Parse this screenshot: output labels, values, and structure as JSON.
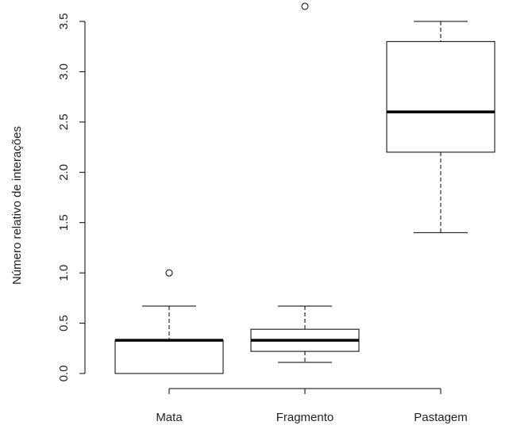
{
  "chart_data": {
    "type": "boxplot",
    "ylabel": "Número relativo de interações",
    "xlabel": "",
    "ylim": [
      -0.15,
      3.65
    ],
    "yticks": [
      "0.0",
      "0.5",
      "1.0",
      "1.5",
      "2.0",
      "2.5",
      "3.0",
      "3.5"
    ],
    "categories": [
      "Mata",
      "Fragmento",
      "Pastagem"
    ],
    "series": [
      {
        "category": "Mata",
        "whisker_low": 0.0,
        "q1": 0.0,
        "median": 0.33,
        "q3": 0.33,
        "whisker_high": 0.67,
        "outliers": [
          1.0
        ]
      },
      {
        "category": "Fragmento",
        "whisker_low": 0.11,
        "q1": 0.22,
        "median": 0.33,
        "q3": 0.44,
        "whisker_high": 0.67,
        "outliers": [
          3.65
        ]
      },
      {
        "category": "Pastagem",
        "whisker_low": 1.4,
        "q1": 2.2,
        "median": 2.6,
        "q3": 3.3,
        "whisker_high": 3.5,
        "outliers": []
      }
    ]
  }
}
